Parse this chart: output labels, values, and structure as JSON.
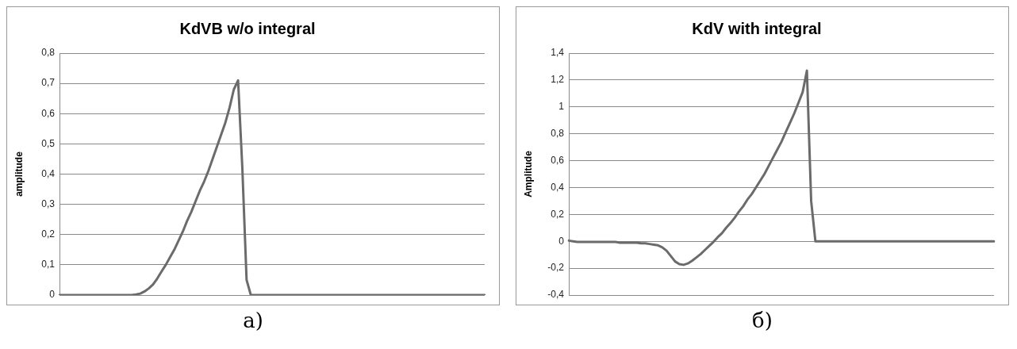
{
  "chart_data": [
    {
      "type": "line",
      "title": "KdVB w/o integral",
      "ylabel": "amplitude",
      "annotations": [
        "a)"
      ],
      "categories": [
        null,
        null,
        null,
        null,
        null,
        null,
        null,
        null,
        null,
        null,
        null,
        null,
        null,
        null,
        null,
        null,
        null,
        null,
        null,
        null,
        null,
        null,
        null,
        null,
        null,
        null,
        null,
        null,
        null,
        null,
        null,
        null,
        null,
        null,
        null,
        null,
        null,
        null,
        null,
        null,
        null,
        null,
        null,
        null,
        null,
        null,
        null,
        null,
        null,
        null,
        null,
        null,
        null,
        null,
        null,
        null,
        null,
        null,
        null,
        null,
        null,
        null,
        null,
        null,
        null,
        null,
        null,
        null,
        null,
        null,
        null,
        null,
        null,
        null,
        null,
        null,
        null,
        null,
        null,
        null,
        null,
        null,
        null,
        null,
        null,
        null,
        null,
        null,
        null,
        null,
        null,
        null,
        null,
        null,
        null,
        null,
        null,
        null,
        null,
        null,
        null
      ],
      "series": [
        {
          "color": "#6b6b6b",
          "values": [
            0,
            0,
            0,
            0,
            0,
            0,
            0,
            0,
            0,
            0,
            0,
            0,
            0,
            0,
            0,
            0,
            0,
            0,
            0.002,
            0.005,
            0.012,
            0.022,
            0.035,
            0.055,
            0.078,
            0.1,
            0.125,
            0.15,
            0.18,
            0.21,
            0.245,
            0.275,
            0.31,
            0.345,
            0.375,
            0.41,
            0.45,
            0.49,
            0.53,
            0.57,
            0.62,
            0.68,
            0.71,
            0.42,
            0.05,
            0,
            0,
            0,
            0,
            0,
            0,
            0,
            0,
            0,
            0,
            0,
            0,
            0,
            0,
            0,
            0,
            0,
            0,
            0,
            0,
            0,
            0,
            0,
            0,
            0,
            0,
            0,
            0,
            0,
            0,
            0,
            0,
            0,
            0,
            0,
            0,
            0,
            0,
            0,
            0,
            0,
            0,
            0,
            0,
            0,
            0,
            0,
            0,
            0,
            0,
            0,
            0,
            0,
            0,
            0,
            0
          ]
        }
      ],
      "ylim": [
        0,
        0.8
      ],
      "yticks": [
        {
          "value": 0,
          "label": "0"
        },
        {
          "value": 0.1,
          "label": "0,1"
        },
        {
          "value": 0.2,
          "label": "0,2"
        },
        {
          "value": 0.3,
          "label": "0,3"
        },
        {
          "value": 0.4,
          "label": "0,4"
        },
        {
          "value": 0.5,
          "label": "0,5"
        },
        {
          "value": 0.6,
          "label": "0,6"
        },
        {
          "value": 0.7,
          "label": "0,7"
        },
        {
          "value": 0.8,
          "label": "0,8"
        }
      ],
      "grid": "y",
      "legend": false,
      "tick_labels": "y",
      "marker": "none",
      "line_style": "solid"
    },
    {
      "type": "line",
      "title": "KdV with integral",
      "ylabel": "Amplitude",
      "annotations": [
        "б)"
      ],
      "categories": [
        null,
        null,
        null,
        null,
        null,
        null,
        null,
        null,
        null,
        null,
        null,
        null,
        null,
        null,
        null,
        null,
        null,
        null,
        null,
        null,
        null,
        null,
        null,
        null,
        null,
        null,
        null,
        null,
        null,
        null,
        null,
        null,
        null,
        null,
        null,
        null,
        null,
        null,
        null,
        null,
        null,
        null,
        null,
        null,
        null,
        null,
        null,
        null,
        null,
        null,
        null,
        null,
        null,
        null,
        null,
        null,
        null,
        null,
        null,
        null,
        null,
        null,
        null,
        null,
        null,
        null,
        null,
        null,
        null,
        null,
        null,
        null,
        null,
        null,
        null,
        null,
        null,
        null,
        null,
        null,
        null,
        null,
        null,
        null,
        null,
        null,
        null,
        null,
        null,
        null,
        null,
        null,
        null,
        null,
        null,
        null,
        null,
        null,
        null,
        null,
        null
      ],
      "series": [
        {
          "color": "#6b6b6b",
          "values": [
            0.005,
            0,
            -0.005,
            -0.005,
            -0.005,
            -0.005,
            -0.005,
            -0.005,
            -0.005,
            -0.005,
            -0.005,
            -0.005,
            -0.01,
            -0.01,
            -0.01,
            -0.01,
            -0.01,
            -0.015,
            -0.015,
            -0.02,
            -0.025,
            -0.03,
            -0.045,
            -0.07,
            -0.11,
            -0.15,
            -0.17,
            -0.175,
            -0.165,
            -0.145,
            -0.12,
            -0.095,
            -0.065,
            -0.035,
            -0.005,
            0.03,
            0.06,
            0.1,
            0.135,
            0.175,
            0.22,
            0.26,
            0.31,
            0.35,
            0.4,
            0.45,
            0.5,
            0.56,
            0.62,
            0.68,
            0.74,
            0.81,
            0.88,
            0.95,
            1.03,
            1.11,
            1.27,
            0.3,
            0,
            0,
            0,
            0,
            0,
            0,
            0,
            0,
            0,
            0,
            0,
            0,
            0,
            0,
            0,
            0,
            0,
            0,
            0,
            0,
            0,
            0,
            0,
            0,
            0,
            0,
            0,
            0,
            0,
            0,
            0,
            0,
            0,
            0,
            0,
            0,
            0,
            0,
            0,
            0,
            0,
            0,
            0
          ]
        }
      ],
      "ylim": [
        -0.4,
        1.4
      ],
      "yticks": [
        {
          "value": -0.4,
          "label": "-0,4"
        },
        {
          "value": -0.2,
          "label": "-0,2"
        },
        {
          "value": 0,
          "label": "0"
        },
        {
          "value": 0.2,
          "label": "0,2"
        },
        {
          "value": 0.4,
          "label": "0,4"
        },
        {
          "value": 0.6,
          "label": "0,6"
        },
        {
          "value": 0.8,
          "label": "0,8"
        },
        {
          "value": 1,
          "label": "1"
        },
        {
          "value": 1.2,
          "label": "1,2"
        },
        {
          "value": 1.4,
          "label": "1,4"
        }
      ],
      "grid": "y",
      "legend": false,
      "tick_labels": "y",
      "marker": "none",
      "line_style": "solid"
    }
  ]
}
